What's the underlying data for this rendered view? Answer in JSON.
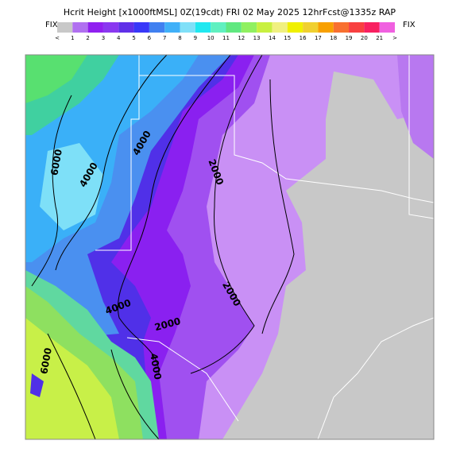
{
  "header": {
    "title": "Hcrit Height [x1000ftMSL] 0Z(19cdt) FRI 02 May 2025 12hrFcst@1335z RAP",
    "left_label": "FIX",
    "right_label": "FIX"
  },
  "legend": {
    "labels": [
      "<",
      "1",
      "2",
      "3",
      "4",
      "5",
      "6",
      "7",
      "8",
      "9",
      "10",
      "11",
      "12",
      "13",
      "14",
      "15",
      "16",
      "17",
      "18",
      "19",
      "20",
      "21",
      ">"
    ]
  },
  "map": {
    "contour_labels": [
      "6000",
      "4000",
      "4000",
      "2000",
      "4000",
      "2000",
      "2000",
      "6000",
      "4000"
    ]
  }
}
